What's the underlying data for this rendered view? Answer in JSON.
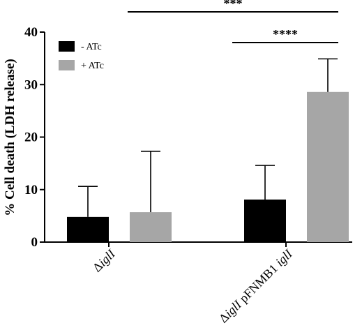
{
  "chart_data": {
    "type": "bar",
    "ylabel": "% Cell death (LDH release)",
    "ylim": [
      0,
      40
    ],
    "yticks": [
      0,
      10,
      20,
      30,
      40
    ],
    "categories": [
      {
        "main": "Δ",
        "italic": "iglI",
        "rest": "",
        "italic2": ""
      },
      {
        "main": "Δ",
        "italic": "iglI",
        "rest": " pFNMB1 ",
        "italic2": "iglI"
      }
    ],
    "series": [
      {
        "name": "- ATc",
        "color": "#000000",
        "values": [
          4.8,
          8.1
        ],
        "errors": [
          5.8,
          6.5
        ]
      },
      {
        "name": "+ ATc",
        "color": "#a6a6a6",
        "values": [
          5.7,
          28.6
        ],
        "errors": [
          11.6,
          6.3
        ]
      }
    ],
    "legend": {
      "placement": "top-left"
    },
    "significance": [
      {
        "label": "***",
        "span": "Δ iglI (- ATc) to Δ iglI pFNMB1 iglI (+ ATc)",
        "y": 44.0
      },
      {
        "label": "****",
        "span": "Δ iglI pFNMB1 iglI (- ATc) to (+ ATc)",
        "y": 38.0
      }
    ],
    "grid": false
  }
}
